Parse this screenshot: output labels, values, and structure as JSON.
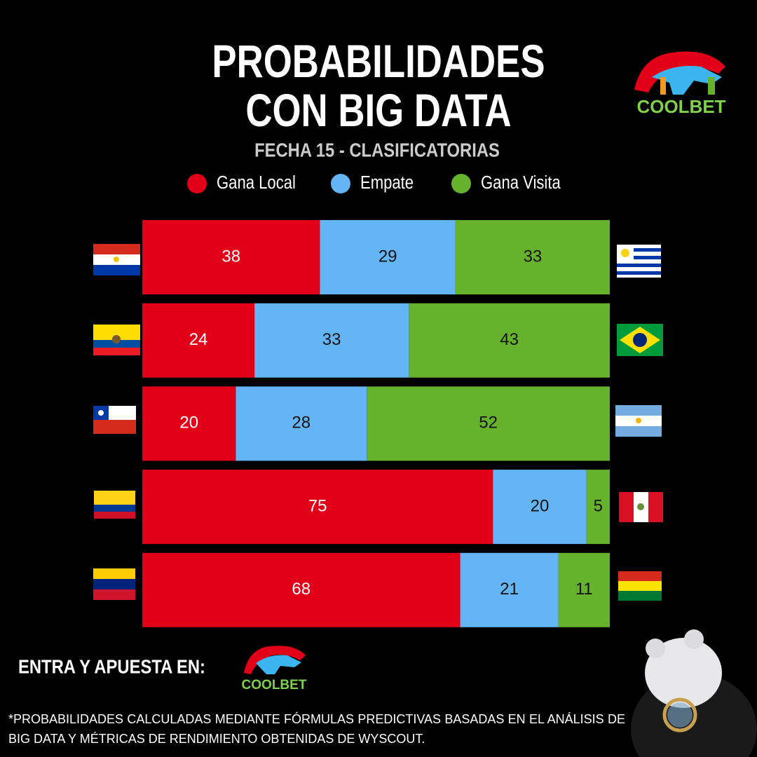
{
  "header": {
    "logo": "COOLBET"
  },
  "chart_data": {
    "type": "stacked-bar-horizontal",
    "title": "PROBABILIDADES CON BIG DATA",
    "subtitle": "FECHA 15 - CLASIFICATORIAS",
    "categories": [
      null,
      null,
      null,
      null,
      null
    ],
    "series": [
      {
        "name": "Gana Local",
        "color": "#e10017",
        "values": [
          38,
          24,
          20,
          75,
          68
        ]
      },
      {
        "name": "Empate",
        "color": "#64b5f6",
        "values": [
          29,
          33,
          28,
          20,
          21
        ]
      },
      {
        "name": "Gana Visita",
        "color": "#66b22d",
        "values": [
          33,
          43,
          52,
          5,
          11
        ]
      }
    ],
    "xlim": [
      0,
      100
    ],
    "legend": "top"
  },
  "footer": {
    "cta": "ENTRA Y APUESTA EN:",
    "logo": "COOLBET",
    "note": "*PROBABILIDADES CALCULADAS MEDIANTE FÓRMULAS PREDICTIVAS BASADAS EN EL ANÁLISIS DE BIG DATA Y MÉTRICAS DE RENDIMIENTO OBTENIDAS DE WYSCOUT."
  }
}
